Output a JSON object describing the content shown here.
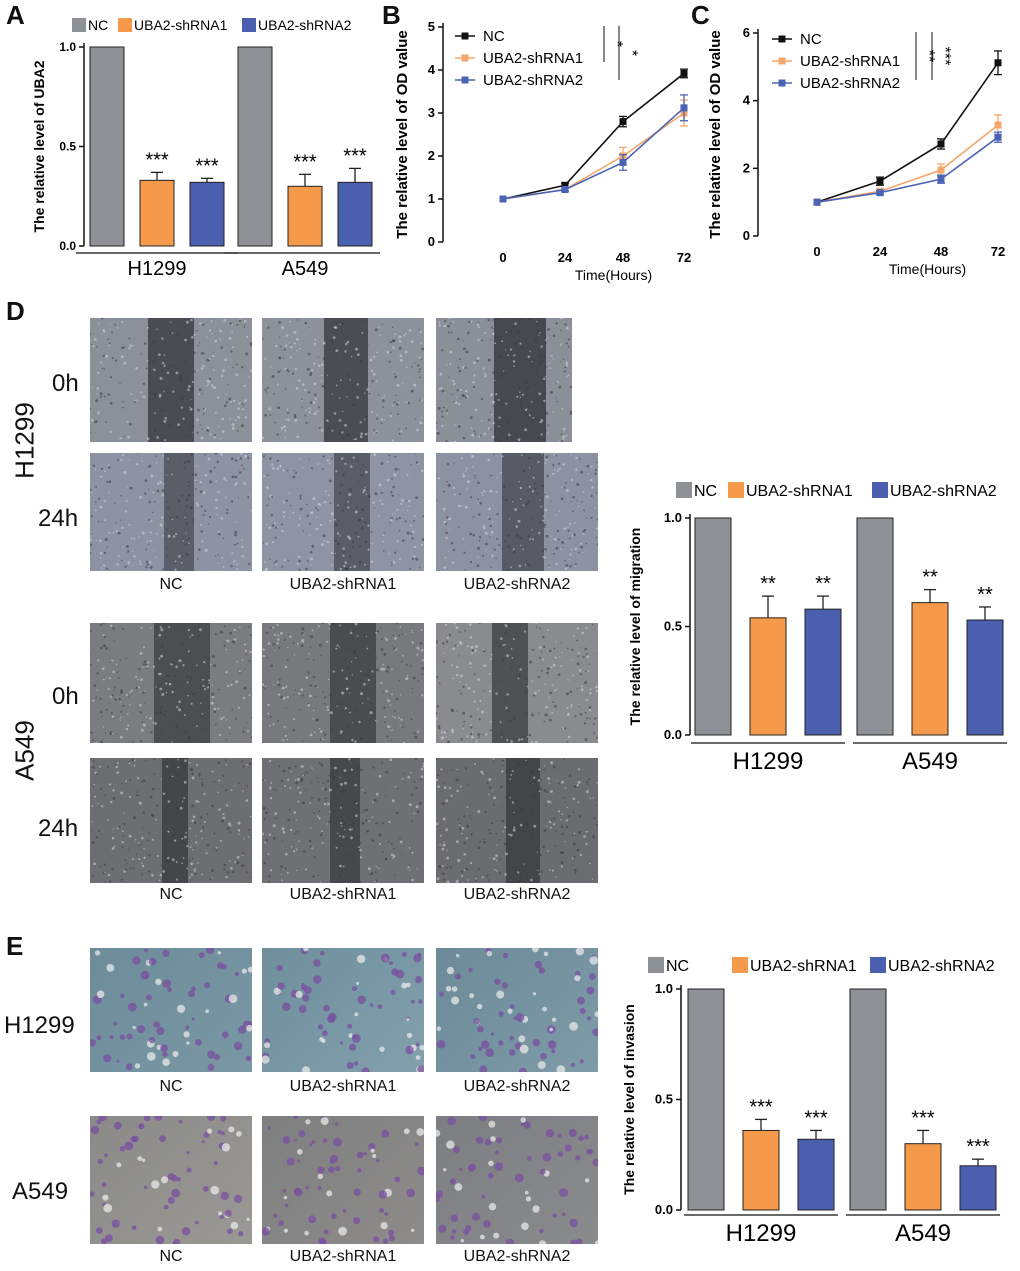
{
  "colors": {
    "nc": "#8e9196",
    "sh1": "#f5994a",
    "sh2": "#4a5fae",
    "line_nc": "#111111",
    "line_sh1": "#f5a66a",
    "line_sh2": "#4a63b5"
  },
  "legend": {
    "nc": "NC",
    "sh1": "UBA2-shRNA1",
    "sh2": "UBA2-shRNA2"
  },
  "panel_letters": {
    "a": "A",
    "b": "B",
    "c": "C",
    "d": "D",
    "e": "E"
  },
  "panel_d": {
    "h1299_label": "H1299",
    "a549_label": "A549",
    "time_0h": "0h",
    "time_24h": "24h",
    "col_labels": [
      "NC",
      "UBA2-shRNA1",
      "UBA2-shRNA2"
    ]
  },
  "panel_e": {
    "h1299_label": "H1299",
    "a549_label": "A549",
    "col_labels": [
      "NC",
      "UBA2-shRNA1",
      "UBA2-shRNA2"
    ]
  },
  "chart_data": [
    {
      "id": "A",
      "type": "bar",
      "ylabel": "The relative level of UBA2",
      "groups": [
        "H1299",
        "A549"
      ],
      "ylim": [
        0,
        1.0
      ],
      "yticks": [
        "0.0",
        "0.5",
        "1.0"
      ],
      "series": [
        {
          "name": "NC",
          "values": [
            1.0,
            1.0
          ],
          "errors": [
            0,
            0
          ],
          "sig": [
            "",
            ""
          ]
        },
        {
          "name": "UBA2-shRNA1",
          "values": [
            0.33,
            0.3
          ],
          "errors": [
            0.04,
            0.06
          ],
          "sig": [
            "***",
            "***"
          ]
        },
        {
          "name": "UBA2-shRNA2",
          "values": [
            0.32,
            0.32
          ],
          "errors": [
            0.02,
            0.07
          ],
          "sig": [
            "***",
            "***"
          ]
        }
      ]
    },
    {
      "id": "B",
      "type": "line",
      "ylabel": "The relative level of OD value",
      "xlabel": "Time(Hours)",
      "x": [
        "0",
        "24",
        "48",
        "72"
      ],
      "ylim": [
        0,
        5
      ],
      "yticks": [
        "0",
        "1",
        "2",
        "3",
        "4",
        "5"
      ],
      "series": [
        {
          "name": "NC",
          "values": [
            1.0,
            1.32,
            2.8,
            3.92
          ],
          "errors": [
            0,
            0.05,
            0.12,
            0.1
          ]
        },
        {
          "name": "UBA2-shRNA1",
          "values": [
            1.0,
            1.22,
            2.0,
            3.0
          ],
          "errors": [
            0,
            0.04,
            0.2,
            0.3
          ]
        },
        {
          "name": "UBA2-shRNA2",
          "values": [
            1.0,
            1.22,
            1.85,
            3.12
          ],
          "errors": [
            0,
            0.04,
            0.18,
            0.3
          ]
        }
      ],
      "sig": [
        "*",
        "*"
      ]
    },
    {
      "id": "C",
      "type": "line",
      "ylabel": "The relative level of OD value",
      "xlabel": "Time(Hours)",
      "x": [
        "0",
        "24",
        "48",
        "72"
      ],
      "ylim": [
        0,
        6
      ],
      "yticks": [
        "0",
        "2",
        "4",
        "6"
      ],
      "series": [
        {
          "name": "NC",
          "values": [
            1.0,
            1.62,
            2.72,
            5.12
          ],
          "errors": [
            0,
            0.12,
            0.15,
            0.35
          ]
        },
        {
          "name": "UBA2-shRNA1",
          "values": [
            1.0,
            1.32,
            1.95,
            3.28
          ],
          "errors": [
            0,
            0.08,
            0.18,
            0.3
          ]
        },
        {
          "name": "UBA2-shRNA2",
          "values": [
            1.0,
            1.28,
            1.68,
            2.92
          ],
          "errors": [
            0,
            0.06,
            0.12,
            0.15
          ]
        }
      ],
      "sig": [
        "**",
        "***"
      ]
    },
    {
      "id": "D",
      "type": "bar",
      "ylabel": "The relative level of migration",
      "groups": [
        "H1299",
        "A549"
      ],
      "ylim": [
        0,
        1.0
      ],
      "yticks": [
        "0.0",
        "0.5",
        "1.0"
      ],
      "series": [
        {
          "name": "NC",
          "values": [
            1.0,
            1.0
          ],
          "errors": [
            0,
            0
          ],
          "sig": [
            "",
            ""
          ]
        },
        {
          "name": "UBA2-shRNA1",
          "values": [
            0.54,
            0.61
          ],
          "errors": [
            0.1,
            0.06
          ],
          "sig": [
            "**",
            "**"
          ]
        },
        {
          "name": "UBA2-shRNA2",
          "values": [
            0.58,
            0.53
          ],
          "errors": [
            0.06,
            0.06
          ],
          "sig": [
            "**",
            "**"
          ]
        }
      ]
    },
    {
      "id": "E",
      "type": "bar",
      "ylabel": "The relative level of invasion",
      "groups": [
        "H1299",
        "A549"
      ],
      "ylim": [
        0,
        1.0
      ],
      "yticks": [
        "0.0",
        "0.5",
        "1.0"
      ],
      "series": [
        {
          "name": "NC",
          "values": [
            1.0,
            1.0
          ],
          "errors": [
            0,
            0
          ],
          "sig": [
            "",
            ""
          ]
        },
        {
          "name": "UBA2-shRNA1",
          "values": [
            0.36,
            0.3
          ],
          "errors": [
            0.05,
            0.06
          ],
          "sig": [
            "***",
            "***"
          ]
        },
        {
          "name": "UBA2-shRNA2",
          "values": [
            0.32,
            0.2
          ],
          "errors": [
            0.04,
            0.03
          ],
          "sig": [
            "***",
            "***"
          ]
        }
      ]
    }
  ]
}
